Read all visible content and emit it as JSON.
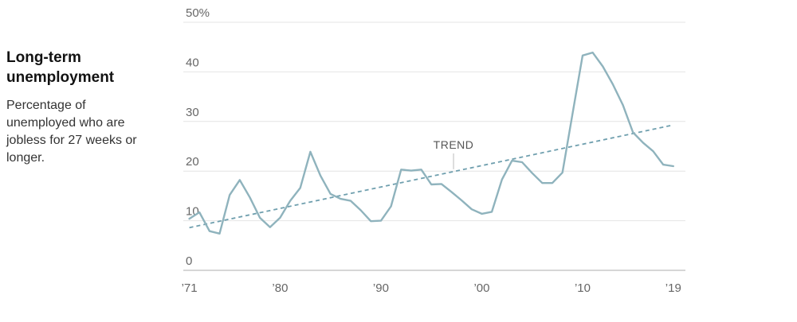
{
  "chart_data": {
    "type": "line",
    "title": "Long-term unemployment",
    "subtitle": "Percentage of unemployed who are jobless for 27 weeks or longer.",
    "xlabel": "",
    "ylabel": "",
    "xlim": [
      1970.4,
      2020.2
    ],
    "ylim": [
      0,
      50
    ],
    "y_ticks": [
      0,
      10,
      20,
      30,
      40,
      50
    ],
    "y_tick_labels": [
      "0",
      "10",
      "20",
      "30",
      "40",
      "50%"
    ],
    "x_ticks": [
      1971,
      1980,
      1990,
      2000,
      2010,
      2019
    ],
    "x_tick_labels": [
      "’71",
      "’80",
      "’90",
      "’00",
      "’10",
      "’19"
    ],
    "grid": true,
    "colors": {
      "series": "#8fb3bd",
      "trend": "#6f9fae",
      "grid": "#e4e4e4",
      "baseline": "#bdbdbd",
      "text": "#666666"
    },
    "series": [
      {
        "x": [
          1971,
          1972,
          1973,
          1974,
          1975,
          1976,
          1977,
          1978,
          1979,
          1980,
          1981,
          1982,
          1983,
          1984,
          1985,
          1986,
          1987,
          1988,
          1989,
          1990,
          1991,
          1992,
          1993,
          1994,
          1995,
          1996,
          1997,
          1998,
          1999,
          2000,
          2001,
          2002,
          2003,
          2004,
          2005,
          2006,
          2007,
          2008,
          2009,
          2010,
          2011,
          2012,
          2013,
          2014,
          2015,
          2016,
          2017,
          2018,
          2019
        ],
        "values": [
          10.4,
          11.7,
          7.9,
          7.4,
          15.2,
          18.2,
          14.7,
          10.6,
          8.7,
          10.6,
          14.0,
          16.6,
          23.9,
          19.1,
          15.4,
          14.4,
          14.0,
          12.1,
          9.9,
          10.0,
          12.9,
          20.3,
          20.1,
          20.3,
          17.3,
          17.4,
          15.8,
          14.1,
          12.3,
          11.4,
          11.8,
          18.3,
          22.1,
          21.8,
          19.6,
          17.6,
          17.6,
          19.7,
          31.5,
          43.3,
          43.9,
          41.1,
          37.5,
          33.3,
          27.8,
          25.7,
          24.0,
          21.3,
          21.0
        ]
      }
    ],
    "trend": {
      "label": "TREND",
      "x": [
        1971,
        2019
      ],
      "values": [
        8.6,
        29.3
      ]
    }
  }
}
